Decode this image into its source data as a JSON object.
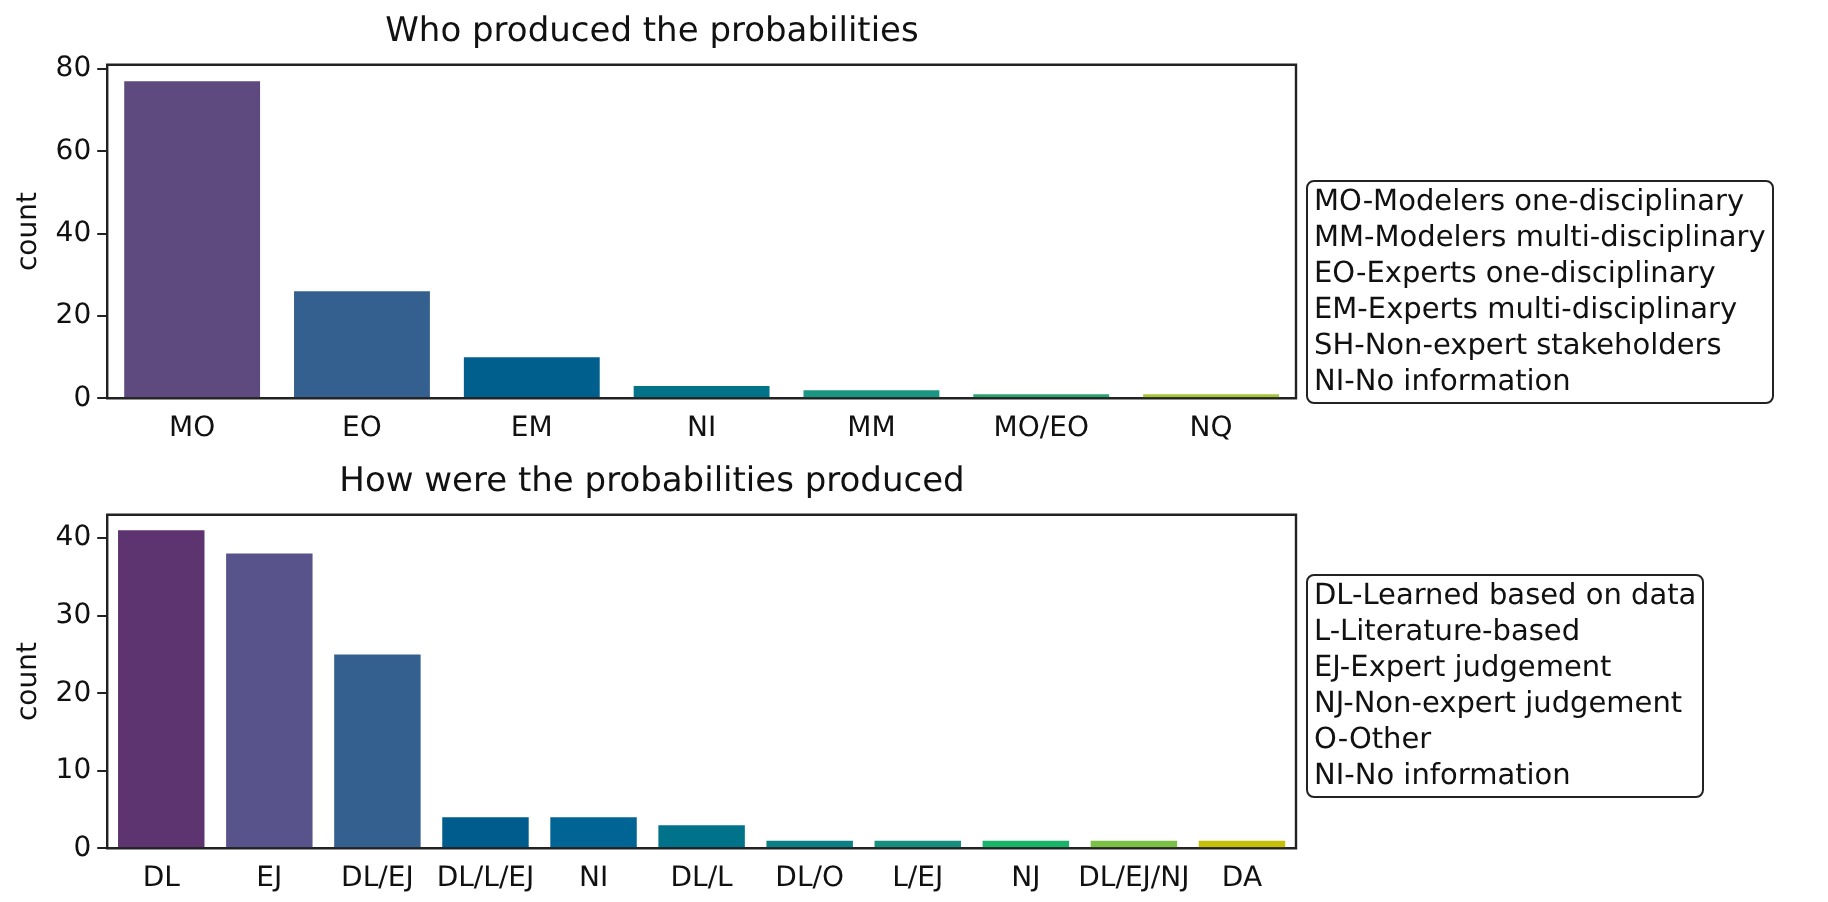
{
  "chart_data": [
    {
      "type": "bar",
      "title": "Who produced the probabilities",
      "ylabel": "count",
      "categories": [
        "MO",
        "EO",
        "EM",
        "NI",
        "MM",
        "MO/EO",
        "NQ"
      ],
      "values": [
        77,
        26,
        10,
        3,
        2,
        1,
        1
      ],
      "colors": [
        "#5f4a7f",
        "#33608f",
        "#005f8c",
        "#03738a",
        "#1b9682",
        "#2ba36e",
        "#a6c437"
      ],
      "ylim": [
        0,
        81
      ],
      "yticks": [
        0,
        20,
        40,
        60,
        80
      ],
      "annotations": [
        "MO-Modelers one-disciplinary",
        "MM-Modelers multi-disciplinary",
        "EO-Experts one-disciplinary",
        "EM-Experts multi-disciplinary",
        "SH-Non-expert stakeholders",
        "NI-No information"
      ]
    },
    {
      "type": "bar",
      "title": "How were the probabilities produced",
      "ylabel": "count",
      "categories": [
        "DL",
        "EJ",
        "DL/EJ",
        "DL/L/EJ",
        "NI",
        "DL/L",
        "DL/O",
        "L/EJ",
        "NJ",
        "DL/EJ/NJ",
        "DA"
      ],
      "values": [
        41,
        38,
        25,
        4,
        4,
        3,
        1,
        1,
        1,
        1,
        1
      ],
      "colors": [
        "#5e3470",
        "#58538a",
        "#34608f",
        "#005c8c",
        "#006594",
        "#00728a",
        "#0a7f86",
        "#168f7e",
        "#1ab36a",
        "#7ac146",
        "#c6bf0a"
      ],
      "ylim": [
        0,
        43
      ],
      "yticks": [
        0,
        10,
        20,
        30,
        40
      ],
      "annotations": [
        "DL-Learned based on data",
        "L-Literature-based",
        "EJ-Expert judgement",
        "NJ-Non-expert judgement",
        "O-Other",
        "NI-No information"
      ]
    }
  ]
}
